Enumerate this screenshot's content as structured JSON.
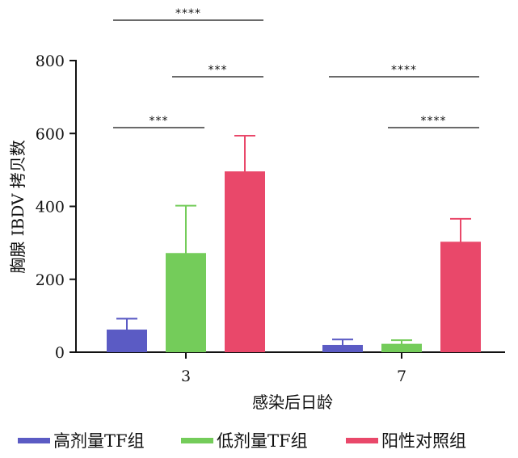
{
  "chart_data": {
    "type": "bar",
    "title": "",
    "xlabel": "感染后日龄",
    "ylabel": "胸腺 IBDV 拷贝数",
    "categories": [
      "3",
      "7"
    ],
    "ylim": [
      0,
      800
    ],
    "yticks": [
      0,
      200,
      400,
      600,
      800
    ],
    "grid": false,
    "legend_position": "bottom",
    "series": [
      {
        "name": "高剂量TF组",
        "color": "#5b5bc4",
        "values": [
          62,
          20
        ],
        "errors": [
          30,
          15
        ]
      },
      {
        "name": "低剂量TF组",
        "color": "#74cc5a",
        "values": [
          272,
          23
        ],
        "errors": [
          130,
          10
        ]
      },
      {
        "name": "阳性对照组",
        "color": "#e9486a",
        "values": [
          496,
          303
        ],
        "errors": [
          98,
          63
        ]
      }
    ],
    "significance": [
      {
        "category": "3",
        "from_series": 0,
        "to_series": 1,
        "label": "***"
      },
      {
        "category": "3",
        "from_series": 1,
        "to_series": 2,
        "label": "***"
      },
      {
        "category": "3",
        "from_series": 0,
        "to_series": 2,
        "label": "****"
      },
      {
        "category": "7",
        "from_series": 1,
        "to_series": 2,
        "label": "****"
      },
      {
        "category": "7",
        "from_series": 0,
        "to_series": 2,
        "label": "****"
      }
    ]
  }
}
